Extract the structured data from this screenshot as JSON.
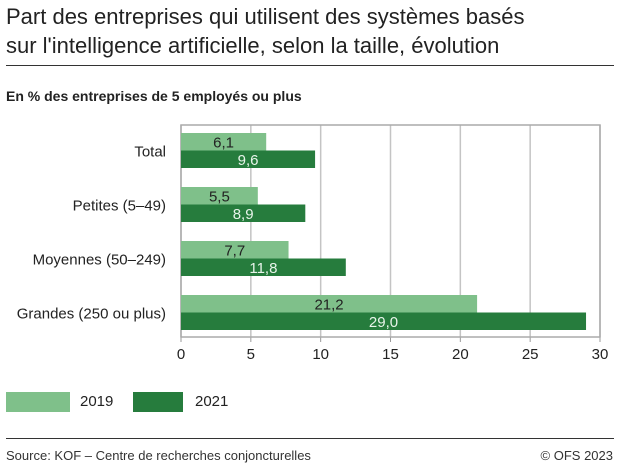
{
  "title_lines": [
    "Part des entreprises qui utilisent des systèmes basés",
    "sur l'intelligence artificielle, selon la taille, évolution"
  ],
  "subtitle": "En % des entreprises de 5 employés ou plus",
  "source": "Source: KOF – Centre de recherches conjoncturelles",
  "copyright": "© OFS 2023",
  "chart_data": {
    "type": "bar",
    "orientation": "horizontal",
    "categories": [
      "Total",
      "Petites (5–49)",
      "Moyennes (50–249)",
      "Grandes (250 ou plus)"
    ],
    "series": [
      {
        "name": "2019",
        "color": "#7fc08a",
        "values": [
          6.1,
          5.5,
          7.7,
          21.2
        ],
        "labels": [
          "6,1",
          "5,5",
          "7,7",
          "21,2"
        ]
      },
      {
        "name": "2021",
        "color": "#267c3d",
        "values": [
          9.6,
          8.9,
          11.8,
          29.0
        ],
        "labels": [
          "9,6",
          "8,9",
          "11,8",
          "29,0"
        ]
      }
    ],
    "xlim": [
      0,
      30
    ],
    "xticks": [
      0,
      5,
      10,
      15,
      20,
      25,
      30
    ],
    "grid": true,
    "legend_placement": "bottom-left"
  }
}
